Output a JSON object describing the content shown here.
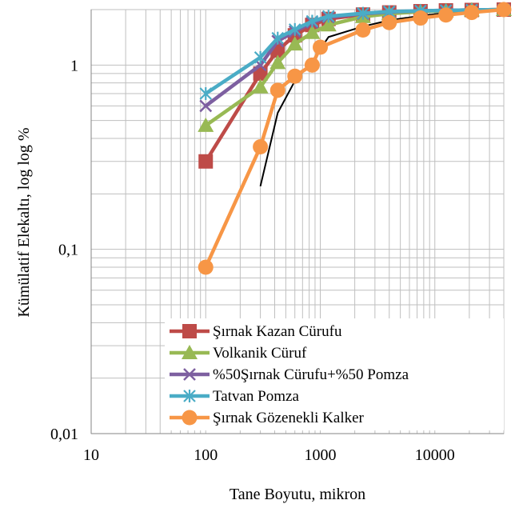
{
  "chart_data": {
    "type": "line",
    "title": "",
    "xlabel": "Tane Boyutu, mikron",
    "ylabel": "Kümülatif Elekaltı, log log %",
    "xscale": "log",
    "yscale": "log",
    "xlim": [
      10,
      40000
    ],
    "ylim": [
      0.01,
      2
    ],
    "x_tick_labels": [
      "10",
      "100",
      "1000",
      "10000"
    ],
    "y_tick_labels": [
      "0,01",
      "0,1",
      "1"
    ],
    "grid": true,
    "legend_position": "bottom-right",
    "series": [
      {
        "name": "Şırnak Kazan Cürufu",
        "color": "#be4b48",
        "marker": "square",
        "x": [
          100,
          300,
          425,
          600,
          850,
          1180,
          2360,
          4000,
          7500,
          12500,
          21000,
          40000
        ],
        "y": [
          0.3,
          0.9,
          1.2,
          1.45,
          1.65,
          1.78,
          1.88,
          1.93,
          1.96,
          1.98,
          1.99,
          2.0
        ]
      },
      {
        "name": "Volkanik Cüruf",
        "color": "#98b954",
        "marker": "triangle",
        "x": [
          100,
          300,
          425,
          600,
          850,
          1180,
          2360,
          4000,
          7500,
          12500,
          21000,
          40000
        ],
        "y": [
          0.47,
          0.76,
          1.03,
          1.3,
          1.5,
          1.65,
          1.83,
          1.9,
          1.95,
          1.97,
          1.99,
          2.0
        ]
      },
      {
        "name": "%50Şırnak Cürufu+%50 Pomza",
        "color": "#7d5fa0",
        "marker": "x",
        "x": [
          100,
          300,
          425,
          600,
          850,
          1180,
          2360,
          4000,
          7500,
          12500,
          21000,
          40000
        ],
        "y": [
          0.6,
          1.0,
          1.35,
          1.52,
          1.7,
          1.82,
          1.9,
          1.94,
          1.97,
          1.98,
          1.99,
          2.0
        ]
      },
      {
        "name": "Tatvan Pomza",
        "color": "#4aacc6",
        "marker": "star",
        "x": [
          100,
          300,
          425,
          600,
          850,
          1180,
          2360,
          4000,
          7500,
          12500,
          21000,
          40000
        ],
        "y": [
          0.7,
          1.1,
          1.4,
          1.56,
          1.73,
          1.84,
          1.91,
          1.95,
          1.97,
          1.98,
          1.99,
          2.0
        ]
      },
      {
        "name": "Şırnak Gözenekli Kalker",
        "color": "#f79646",
        "marker": "circle",
        "x": [
          100,
          300,
          425,
          600,
          850,
          1000,
          2360,
          4000,
          7500,
          12500,
          21000,
          40000
        ],
        "y": [
          0.08,
          0.36,
          0.73,
          0.87,
          1.0,
          1.25,
          1.55,
          1.7,
          1.8,
          1.87,
          1.93,
          2.0
        ]
      }
    ],
    "reference_line": {
      "color": "#000000",
      "x": [
        300,
        425,
        600,
        850,
        1180,
        2360,
        4000,
        7500,
        12500,
        21000,
        40000
      ],
      "y": [
        0.22,
        0.55,
        0.82,
        1.05,
        1.42,
        1.62,
        1.75,
        1.85,
        1.92,
        1.96,
        2.0
      ]
    }
  }
}
